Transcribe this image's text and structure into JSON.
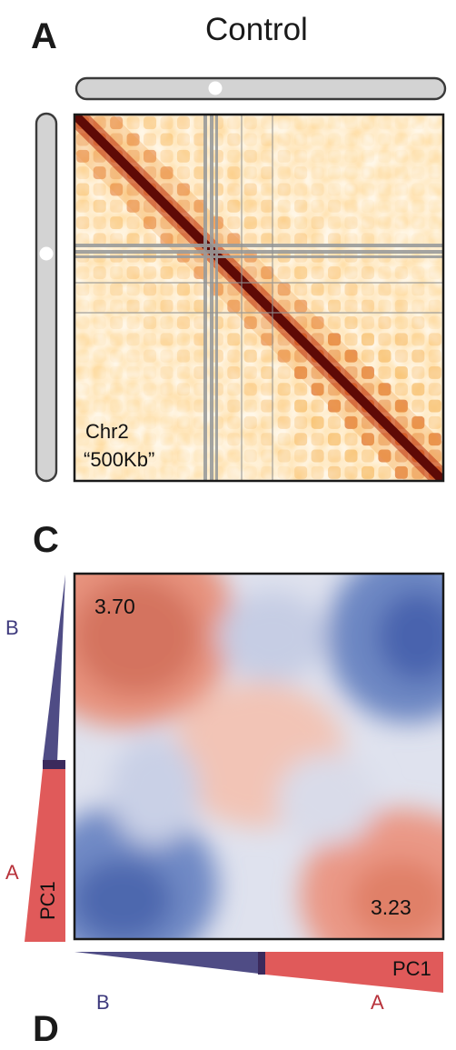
{
  "panel_a": {
    "letter": "A",
    "condition": "Control",
    "chromosome": "Chr2",
    "resolution": "“500Kb”",
    "colors": {
      "ideogram_fill": "#d3d3d3",
      "ideogram_stroke": "#3a3a3a",
      "map_low": "#fff8e6",
      "map_mid": "#f4a52c",
      "map_high": "#5e0a06",
      "mask": "#8f9191"
    }
  },
  "panel_c": {
    "letter": "C",
    "top_left_value": "3.70",
    "bottom_right_value": "3.23",
    "pc_label_vertical": "PC1",
    "pc_label_horizontal": "PC1",
    "axis_left_top": "B",
    "axis_left_bottom": "A",
    "axis_bottom_left": "B",
    "axis_bottom_right": "A",
    "colors": {
      "B": "#4f4c85",
      "A": "#e05a5a",
      "B_text": "#3f3b7e",
      "A_text": "#b8323b",
      "heat_red": "#d2634e",
      "heat_blue": "#3c59a8",
      "heat_mid": "#e9e9ef"
    }
  },
  "next_panel_letter": "D"
}
